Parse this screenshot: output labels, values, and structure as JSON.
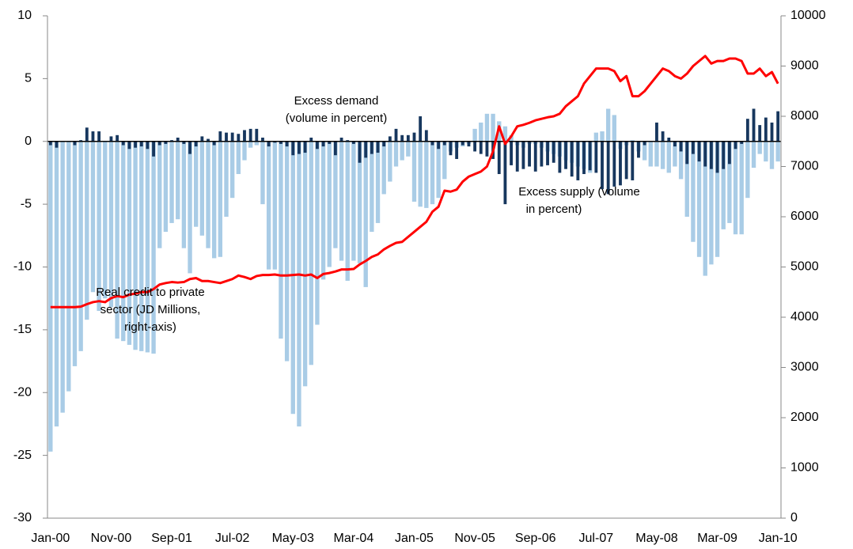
{
  "chart_data": {
    "type": "bar",
    "categories": [
      "Jan-00",
      null,
      null,
      null,
      null,
      null,
      null,
      null,
      null,
      null,
      "Nov-00",
      null,
      null,
      null,
      null,
      null,
      null,
      null,
      null,
      null,
      "Sep-01",
      null,
      null,
      null,
      null,
      null,
      null,
      null,
      null,
      null,
      "Jul-02",
      null,
      null,
      null,
      null,
      null,
      null,
      null,
      null,
      null,
      "May-03",
      null,
      null,
      null,
      null,
      null,
      null,
      null,
      null,
      null,
      "Mar-04",
      null,
      null,
      null,
      null,
      null,
      null,
      null,
      null,
      null,
      "Jan-05",
      null,
      null,
      null,
      null,
      null,
      null,
      null,
      null,
      null,
      "Nov-05",
      null,
      null,
      null,
      null,
      null,
      null,
      null,
      null,
      null,
      "Sep-06",
      null,
      null,
      null,
      null,
      null,
      null,
      null,
      null,
      null,
      "Jul-07",
      null,
      null,
      null,
      null,
      null,
      null,
      null,
      null,
      null,
      "May-08",
      null,
      null,
      null,
      null,
      null,
      null,
      null,
      null,
      null,
      "Mar-09",
      null,
      null,
      null,
      null,
      null,
      null,
      null,
      null,
      null,
      "Jan-10"
    ],
    "series": [
      {
        "color": "#a9cce6",
        "values": [
          -24.7,
          -22.7,
          -21.6,
          -19.9,
          -17.9,
          -16.7,
          -14.2,
          -12.0,
          -13.5,
          -12.5,
          -13.2,
          -15.7,
          -15.9,
          -16.2,
          -16.6,
          -16.7,
          -16.8,
          -16.9,
          -8.5,
          -7.2,
          -6.5,
          -6.2,
          -8.5,
          -10.5,
          -6.8,
          -7.5,
          -8.5,
          -9.3,
          -9.2,
          -6.0,
          -4.5,
          -2.6,
          -1.5,
          -0.5,
          -0.3,
          -5.0,
          -10.2,
          -10.2,
          -15.7,
          -17.5,
          -21.7,
          -22.7,
          -19.5,
          -17.8,
          -14.6,
          -11.0,
          -10.0,
          -8.5,
          -9.5,
          -11.1,
          -9.5,
          -9.7,
          -11.6,
          -7.2,
          -6.5,
          -4.2,
          -3.2,
          -2.0,
          -1.5,
          -1.2,
          -4.8,
          -5.2,
          -5.3,
          -5.0,
          -4.5,
          -3.0,
          -0.8,
          -0.5,
          -0.4,
          -0.2,
          1.0,
          1.5,
          2.2,
          2.2,
          1.6,
          1.2,
          0.5,
          -0.3,
          -0.5,
          -0.2,
          -0.2,
          -0.5,
          -0.8,
          -1.0,
          -1.2,
          -1.5,
          -1.7,
          -2.0,
          -2.2,
          -2.5,
          0.7,
          0.8,
          2.6,
          2.1,
          -0.6,
          -0.3,
          0.1,
          -0.8,
          -1.5,
          -2.0,
          -2.0,
          -2.2,
          -2.5,
          -2.0,
          -3.0,
          -6.0,
          -8.0,
          -9.2,
          -10.7,
          -9.8,
          -9.2,
          -7.0,
          -6.5,
          -7.4,
          -7.4,
          -4.5,
          -2.1,
          -1.0,
          -1.6,
          -2.2,
          -1.6
        ]
      },
      {
        "color": "#17375e",
        "values": [
          -0.3,
          -0.5,
          0,
          0,
          -0.3,
          0.1,
          1.1,
          0.8,
          0.8,
          0,
          0.4,
          0.5,
          -0.3,
          -0.6,
          -0.5,
          -0.4,
          -0.6,
          -1.2,
          -0.3,
          -0.2,
          0.1,
          0.3,
          -0.2,
          -1.0,
          -0.4,
          0.4,
          0.2,
          -0.3,
          0.8,
          0.7,
          0.7,
          0.6,
          0.9,
          1.0,
          1.0,
          0.3,
          -0.4,
          -0.1,
          -0.2,
          -0.4,
          -1.1,
          -1.0,
          -0.9,
          0.3,
          -0.6,
          -0.4,
          -0.2,
          -1.1,
          0.3,
          0.1,
          -0.2,
          -1.7,
          -1.3,
          -1.0,
          -0.9,
          -0.4,
          0.4,
          1.0,
          0.5,
          0.5,
          0.7,
          2.0,
          0.9,
          -0.3,
          -0.6,
          -0.3,
          -1.1,
          -1.4,
          -0.3,
          -0.4,
          -0.8,
          -1.0,
          -1.2,
          -1.4,
          -2.6,
          -5.0,
          -1.9,
          -2.4,
          -2.2,
          -2.0,
          -2.4,
          -2.0,
          -1.9,
          -1.7,
          -2.5,
          -2.2,
          -2.8,
          -3.1,
          -2.6,
          -2.3,
          -2.5,
          -3.8,
          -4.2,
          -3.6,
          -3.5,
          -3.0,
          -3.1,
          -1.3,
          -0.3,
          0,
          1.5,
          0.8,
          0.3,
          -0.4,
          -0.8,
          -1.8,
          -1.0,
          -1.6,
          -2.0,
          -2.2,
          -2.5,
          -2.2,
          -1.8,
          -0.6,
          -0.2,
          1.8,
          2.6,
          1.3,
          1.9,
          1.5,
          2.4
        ]
      },
      {
        "type": "line",
        "axis": "y2",
        "color": "#ff0000",
        "values": [
          4200,
          4200,
          4200,
          4200,
          4200,
          4210,
          4260,
          4300,
          4320,
          4300,
          4380,
          4420,
          4400,
          4450,
          4470,
          4500,
          4500,
          4560,
          4650,
          4680,
          4700,
          4690,
          4700,
          4760,
          4780,
          4720,
          4720,
          4700,
          4680,
          4720,
          4760,
          4830,
          4800,
          4760,
          4820,
          4840,
          4840,
          4850,
          4830,
          4830,
          4840,
          4850,
          4830,
          4850,
          4780,
          4860,
          4880,
          4910,
          4950,
          4950,
          4960,
          5050,
          5120,
          5200,
          5250,
          5350,
          5420,
          5480,
          5500,
          5600,
          5700,
          5800,
          5900,
          6100,
          6200,
          6520,
          6500,
          6540,
          6700,
          6800,
          6850,
          6900,
          7000,
          7300,
          7800,
          7450,
          7600,
          7800,
          7830,
          7870,
          7920,
          7950,
          7980,
          8000,
          8050,
          8200,
          8300,
          8400,
          8650,
          8800,
          8950,
          8950,
          8950,
          8900,
          8700,
          8800,
          8400,
          8400,
          8500,
          8650,
          8800,
          8950,
          8900,
          8800,
          8750,
          8850,
          9000,
          9100,
          9200,
          9050,
          9100,
          9100,
          9150,
          9150,
          9100,
          8850,
          8850,
          8950,
          8800,
          8880,
          8650
        ]
      }
    ],
    "ylim": [
      -30,
      10
    ],
    "yticks": [
      -30,
      -25,
      -20,
      -15,
      -10,
      -5,
      0,
      5,
      10
    ],
    "y2lim": [
      0,
      10000
    ],
    "y2ticks": [
      0,
      1000,
      2000,
      3000,
      4000,
      5000,
      6000,
      7000,
      8000,
      9000,
      10000
    ],
    "annotations": [
      [
        "Excess demand",
        "(volume in percent)"
      ],
      [
        "Excess supply (volume",
        "in percent)"
      ],
      [
        "Real credit to private",
        "sector (JD Millions,",
        "right-axis)"
      ]
    ]
  }
}
